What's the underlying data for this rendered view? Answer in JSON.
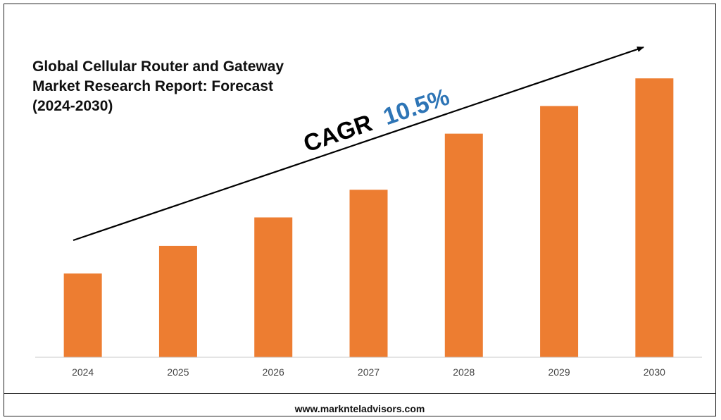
{
  "footer": {
    "url": "www.marknteladvisors.com"
  },
  "chart_data": {
    "type": "bar",
    "title_lines": [
      "Global Cellular Router and Gateway",
      "Market Research Report: Forecast",
      "(2024-2030)"
    ],
    "categories": [
      "2024",
      "2025",
      "2026",
      "2027",
      "2028",
      "2029",
      "2030"
    ],
    "values": [
      1.0,
      1.33,
      1.67,
      2.0,
      2.67,
      3.0,
      3.33
    ],
    "ylim": [
      0,
      3.5
    ],
    "xlabel": "",
    "ylabel": "",
    "grid": false,
    "bar_color": "#ED7D31",
    "annotation": {
      "prefix": "CAGR",
      "value": "10.5%",
      "prefix_color": "#000000",
      "value_color": "#2E75B6"
    }
  }
}
